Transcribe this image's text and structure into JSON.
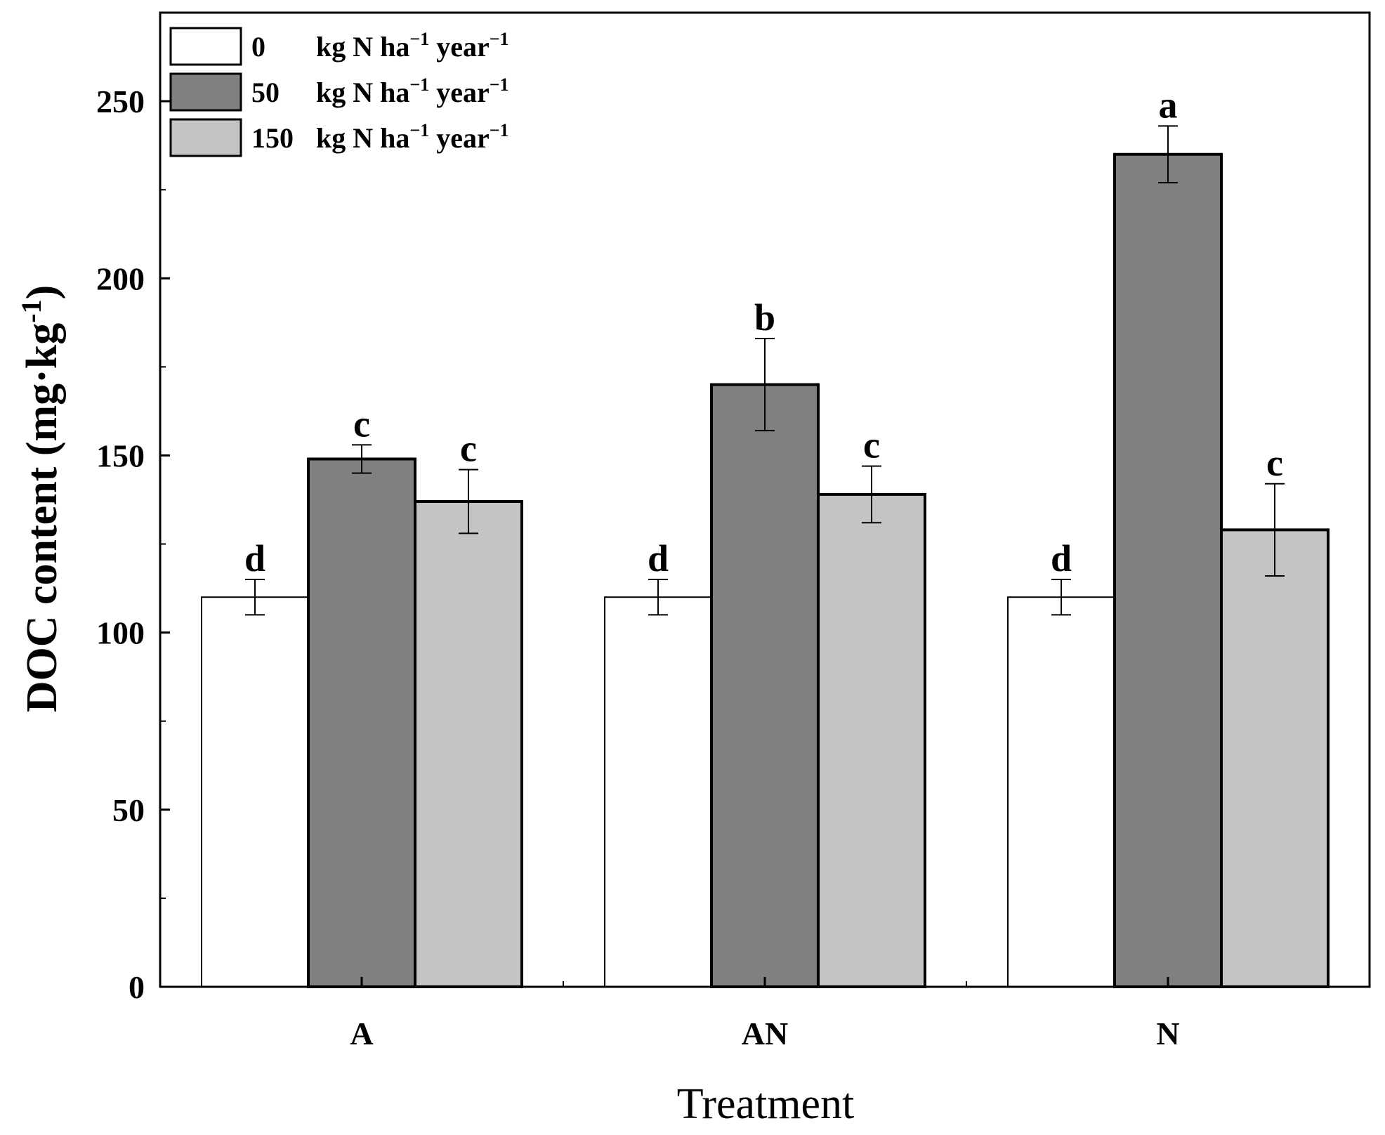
{
  "chart_data": {
    "type": "bar",
    "title": "",
    "xlabel": "Treatment",
    "ylabel": {
      "main": "DOC content (mg·kg",
      "sup": "-1",
      "close": ")"
    },
    "categories": [
      "A",
      "AN",
      "N"
    ],
    "ylim": [
      0,
      275
    ],
    "yticks": [
      0,
      50,
      100,
      150,
      200,
      250
    ],
    "ytick_labels": [
      "0",
      "50",
      "100",
      "150",
      "200",
      "250"
    ],
    "legend_position": "top-left",
    "legend_unit": {
      "kg": "kg N ha",
      "sup1": "−1",
      "year": " year",
      "sup2": "−1"
    },
    "series": [
      {
        "name": "0 kg N ha−1 year−1",
        "label": "0",
        "color": "#ffffff",
        "values": [
          110,
          110,
          110
        ],
        "errors": [
          5,
          5,
          5
        ],
        "letters": [
          "d",
          "d",
          "d"
        ]
      },
      {
        "name": "50 kg N ha−1 year−1",
        "label": "50",
        "color": "#808080",
        "values": [
          149,
          170,
          235
        ],
        "errors": [
          4,
          13,
          8
        ],
        "letters": [
          "c",
          "b",
          "a"
        ]
      },
      {
        "name": "150 kg N ha−1 year−1",
        "label": "150",
        "color": "#c4c4c4",
        "values": [
          137,
          139,
          129
        ],
        "errors": [
          9,
          8,
          13
        ],
        "letters": [
          "c",
          "c",
          "c"
        ]
      }
    ]
  }
}
